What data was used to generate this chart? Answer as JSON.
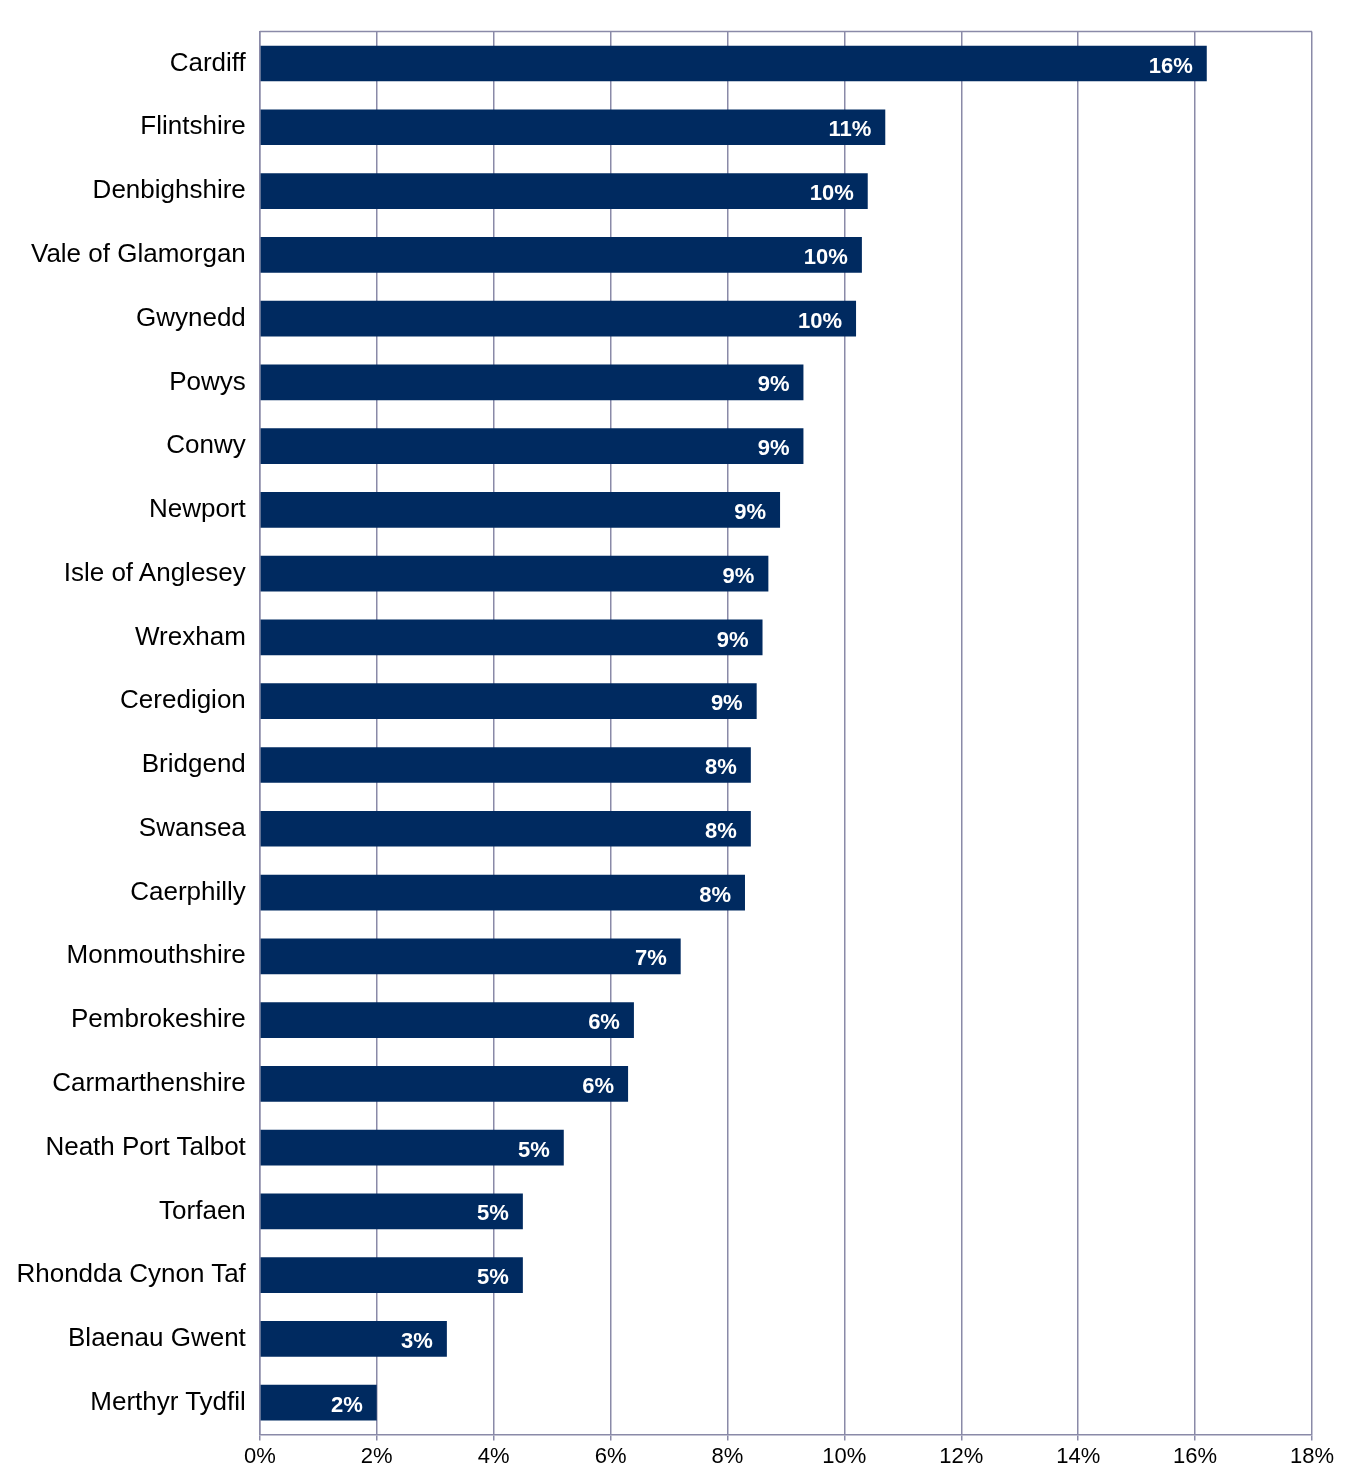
{
  "chart_data": {
    "type": "bar",
    "orientation": "horizontal",
    "categories": [
      "Cardiff",
      "Flintshire",
      "Denbighshire",
      "Vale of Glamorgan",
      "Gwynedd",
      "Powys",
      "Conwy",
      "Newport",
      "Isle of Anglesey",
      "Wrexham",
      "Ceredigion",
      "Bridgend",
      "Swansea",
      "Caerphilly",
      "Monmouthshire",
      "Pembrokeshire",
      "Carmarthenshire",
      "Neath Port Talbot",
      "Torfaen",
      "Rhondda Cynon Taf",
      "Blaenau Gwent",
      "Merthyr Tydfil"
    ],
    "values": [
      16.2,
      10.7,
      10.4,
      10.3,
      10.2,
      9.3,
      9.3,
      8.9,
      8.7,
      8.6,
      8.5,
      8.4,
      8.4,
      8.3,
      7.2,
      6.4,
      6.3,
      5.2,
      4.5,
      4.5,
      3.2,
      2.0
    ],
    "value_labels": [
      "16%",
      "11%",
      "10%",
      "10%",
      "10%",
      "9%",
      "9%",
      "9%",
      "9%",
      "9%",
      "9%",
      "8%",
      "8%",
      "8%",
      "7%",
      "6%",
      "6%",
      "5%",
      "5%",
      "5%",
      "3%",
      "2%"
    ],
    "color": "#002a60",
    "xlim": [
      0,
      18
    ],
    "xticks": [
      {
        "value": 0,
        "label": "0%"
      },
      {
        "value": 2,
        "label": "2%"
      },
      {
        "value": 4,
        "label": "4%"
      },
      {
        "value": 6,
        "label": "6%"
      },
      {
        "value": 8,
        "label": "8%"
      },
      {
        "value": 10,
        "label": "10%"
      },
      {
        "value": 12,
        "label": "12%"
      },
      {
        "value": 14,
        "label": "14%"
      },
      {
        "value": 16,
        "label": "16%"
      },
      {
        "value": 18,
        "label": "18%"
      }
    ],
    "grid": "x",
    "legend": false
  }
}
